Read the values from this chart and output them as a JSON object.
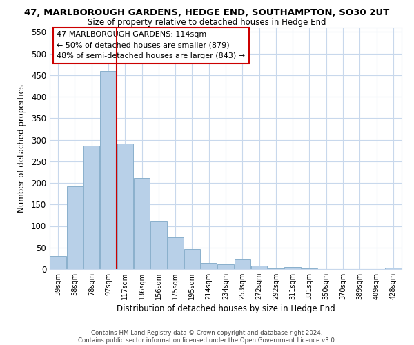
{
  "title": "47, MARLBOROUGH GARDENS, HEDGE END, SOUTHAMPTON, SO30 2UT",
  "subtitle": "Size of property relative to detached houses in Hedge End",
  "xlabel": "Distribution of detached houses by size in Hedge End",
  "ylabel": "Number of detached properties",
  "categories": [
    "39sqm",
    "58sqm",
    "78sqm",
    "97sqm",
    "117sqm",
    "136sqm",
    "156sqm",
    "175sqm",
    "195sqm",
    "214sqm",
    "234sqm",
    "253sqm",
    "272sqm",
    "292sqm",
    "311sqm",
    "331sqm",
    "350sqm",
    "370sqm",
    "389sqm",
    "409sqm",
    "428sqm"
  ],
  "values": [
    30,
    192,
    287,
    460,
    292,
    212,
    110,
    74,
    46,
    14,
    11,
    22,
    8,
    2,
    5,
    1,
    0,
    0,
    0,
    0,
    4
  ],
  "bar_color": "#b8d0e8",
  "bar_edge_color": "#8ab0cc",
  "vline_x_idx": 4,
  "vline_color": "#cc0000",
  "annotation_text": "47 MARLBOROUGH GARDENS: 114sqm\n← 50% of detached houses are smaller (879)\n48% of semi-detached houses are larger (843) →",
  "annotation_box_color": "#ffffff",
  "annotation_box_edge": "#cc0000",
  "ylim": [
    0,
    560
  ],
  "yticks": [
    0,
    50,
    100,
    150,
    200,
    250,
    300,
    350,
    400,
    450,
    500,
    550
  ],
  "background_color": "#ffffff",
  "grid_color": "#c8d8ec",
  "footer_line1": "Contains HM Land Registry data © Crown copyright and database right 2024.",
  "footer_line2": "Contains public sector information licensed under the Open Government Licence v3.0."
}
